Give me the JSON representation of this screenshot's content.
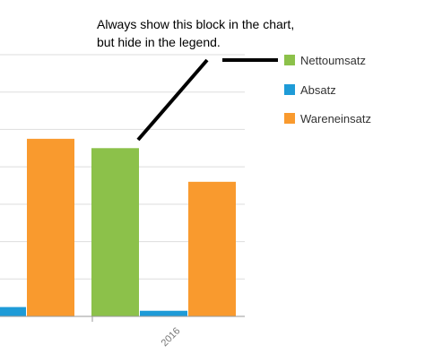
{
  "chart_data": {
    "type": "bar",
    "categories": [
      "",
      "2016"
    ],
    "series": [
      {
        "name": "Nettoumsatz",
        "color": "#8CC14A",
        "values": [
          null,
          45
        ]
      },
      {
        "name": "Absatz",
        "color": "#1E9BD7",
        "values": [
          2.5,
          1.5
        ]
      },
      {
        "name": "Wareneinsatz",
        "color": "#F99A2E",
        "values": [
          47.5,
          36
        ]
      }
    ],
    "ylim": [
      0,
      70
    ],
    "grid": true,
    "legend_placement": "right",
    "annotation": {
      "lines": [
        "Always show this block in the chart,",
        "but hide in the legend."
      ]
    },
    "title": "",
    "xlabel": "",
    "ylabel": ""
  }
}
